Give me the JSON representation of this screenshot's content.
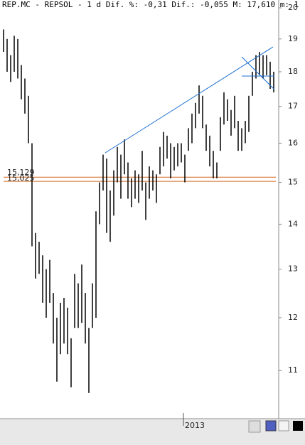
{
  "chart_data": {
    "type": "hilo",
    "title": "REP.MC - REPSOL -  1 d Dif. %: -0,31 Dif.: -0,055 M: 17,610 m: 1",
    "log_scale": true,
    "color": "#000000",
    "categories": [
      null,
      null,
      null,
      null,
      null,
      null,
      null,
      null,
      null,
      null,
      null,
      null,
      null,
      null,
      null,
      null,
      null,
      null,
      null,
      null,
      null,
      null,
      null,
      null,
      null,
      null,
      null,
      null,
      null,
      null,
      null,
      null,
      null,
      null,
      null,
      null,
      null,
      null,
      null,
      null,
      null,
      null,
      null,
      null,
      null,
      null,
      null,
      null,
      null,
      null,
      null,
      "2013",
      null,
      null,
      null,
      null,
      null,
      null,
      null,
      null,
      null,
      null,
      null,
      null,
      null,
      null,
      null,
      null,
      null,
      null,
      null,
      null,
      null,
      null,
      null,
      null,
      null
    ],
    "high": [
      19.3,
      19.0,
      18.5,
      19.1,
      19.0,
      18.2,
      17.8,
      17.3,
      16.0,
      13.8,
      13.6,
      13.3,
      13.0,
      13.2,
      12.5,
      12.0,
      12.3,
      12.4,
      12.2,
      11.6,
      12.9,
      12.7,
      13.1,
      12.5,
      11.8,
      12.7,
      14.3,
      15.0,
      15.7,
      15.6,
      14.8,
      15.3,
      15.9,
      15.7,
      16.1,
      15.5,
      15.1,
      15.3,
      15.2,
      15.8,
      15.0,
      15.4,
      15.3,
      15.2,
      15.9,
      16.3,
      16.2,
      16.0,
      15.9,
      16.0,
      16.0,
      15.7,
      16.4,
      16.8,
      17.1,
      17.6,
      17.3,
      16.5,
      16.2,
      15.8,
      15.5,
      16.7,
      17.4,
      17.2,
      16.9,
      17.3,
      16.6,
      16.4,
      16.6,
      17.3,
      18.0,
      18.5,
      18.6,
      18.5,
      18.5,
      18.3,
      18.0
    ],
    "low": [
      18.6,
      18.0,
      17.7,
      18.0,
      17.8,
      17.2,
      16.8,
      16.0,
      13.5,
      12.8,
      12.9,
      12.3,
      12.0,
      12.3,
      11.5,
      10.8,
      11.3,
      11.5,
      11.3,
      10.7,
      11.8,
      11.8,
      11.9,
      11.5,
      10.6,
      11.8,
      12.0,
      14.0,
      14.8,
      13.8,
      13.6,
      14.2,
      15.0,
      14.6,
      15.2,
      14.6,
      14.4,
      14.6,
      14.5,
      14.8,
      14.1,
      14.6,
      14.8,
      14.5,
      15.2,
      15.4,
      15.6,
      15.1,
      15.3,
      15.4,
      15.5,
      15.0,
      15.8,
      16.0,
      16.4,
      16.8,
      16.4,
      15.8,
      15.4,
      15.1,
      15.1,
      15.8,
      16.5,
      16.6,
      16.2,
      16.4,
      15.8,
      15.8,
      16.0,
      16.3,
      17.3,
      17.8,
      17.9,
      17.8,
      17.9,
      17.5,
      17.4
    ],
    "levels": [
      {
        "value": 15.129,
        "label": "15,129"
      },
      {
        "value": 15.025,
        "label": "15,025"
      }
    ],
    "level_color": "#d2691e",
    "ylim": [
      10.16,
      20.26
    ],
    "yticks": [
      11,
      12,
      13,
      14,
      15,
      16,
      17,
      18,
      19,
      20
    ]
  }
}
